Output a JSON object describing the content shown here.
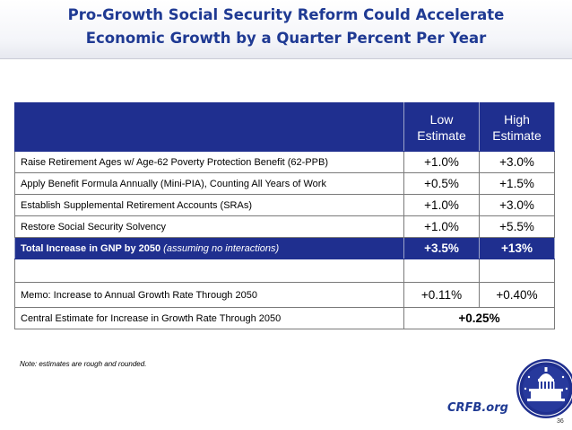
{
  "slide": {
    "title_line1": "Pro-Growth Social Security Reform Could Accelerate",
    "title_line2": "Economic Growth by a Quarter Percent Per Year",
    "page_number": "36"
  },
  "table": {
    "headers": {
      "low": "Low Estimate",
      "high": "High Estimate"
    },
    "rows": [
      {
        "label": "Raise Retirement Ages w/ Age-62 Poverty Protection Benefit (62-PPB)",
        "low": "+1.0%",
        "high": "+3.0%"
      },
      {
        "label": "Apply Benefit Formula Annually (Mini-PIA), Counting All Years of Work",
        "low": "+0.5%",
        "high": "+1.5%"
      },
      {
        "label": "Establish Supplemental Retirement Accounts (SRAs)",
        "low": "+1.0%",
        "high": "+3.0%"
      },
      {
        "label": "Restore Social Security Solvency",
        "low": "+1.0%",
        "high": "+5.5%"
      }
    ],
    "total": {
      "label": "Total Increase in GNP by 2050",
      "label_note": "(assuming no interactions)",
      "low": "+3.5%",
      "high": "+13%"
    },
    "memo": {
      "label": "Memo: Increase to Annual Growth Rate Through 2050",
      "low": "+0.11%",
      "high": "+0.40%"
    },
    "central": {
      "label": "Central Estimate for Increase in Growth Rate Through 2050",
      "value": "+0.25%"
    }
  },
  "footer": {
    "note": "Note: estimates are rough and rounded.",
    "brand": "CRFB.org",
    "seal_icon": "capitol-seal-icon"
  },
  "colors": {
    "title": "#1f3a93",
    "header_fill": "#1f2f8f",
    "brand": "#1f3a93"
  }
}
